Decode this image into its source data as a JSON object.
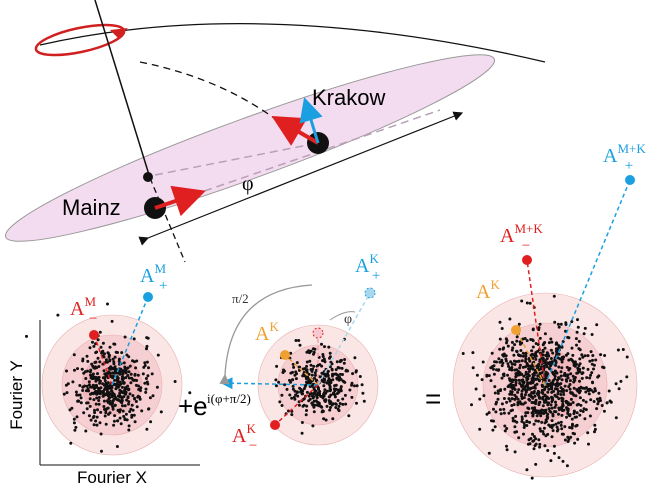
{
  "cities": {
    "mainz": "Mainz",
    "krakow": "Krakow",
    "angle": "φ"
  },
  "panel_left": {
    "a_minus": {
      "base": "A",
      "sup": "M",
      "sub": "−"
    },
    "a_plus": {
      "base": "A",
      "sup": "M",
      "sub": "+"
    }
  },
  "panel_mid": {
    "a_plus": {
      "base": "A",
      "sup": "K",
      "sub": "+"
    },
    "a_k": {
      "base": "A",
      "sup": "K"
    },
    "a_minus": {
      "base": "A",
      "sup": "K",
      "sub": "−"
    },
    "quarter": "π/2",
    "angle": "φ"
  },
  "panel_right": {
    "a_minus": {
      "base": "A",
      "sup": "M+K",
      "sub": "−"
    },
    "a_plus": {
      "base": "A",
      "sup": "M+K",
      "sub": "+"
    },
    "a_k": {
      "base": "A",
      "sup": "K"
    }
  },
  "operators": {
    "plus_e": "+e",
    "exponent": "i(φ+π/2)",
    "equals": "="
  },
  "axes": {
    "y": "Fourier Y",
    "x": "Fourier X"
  }
}
